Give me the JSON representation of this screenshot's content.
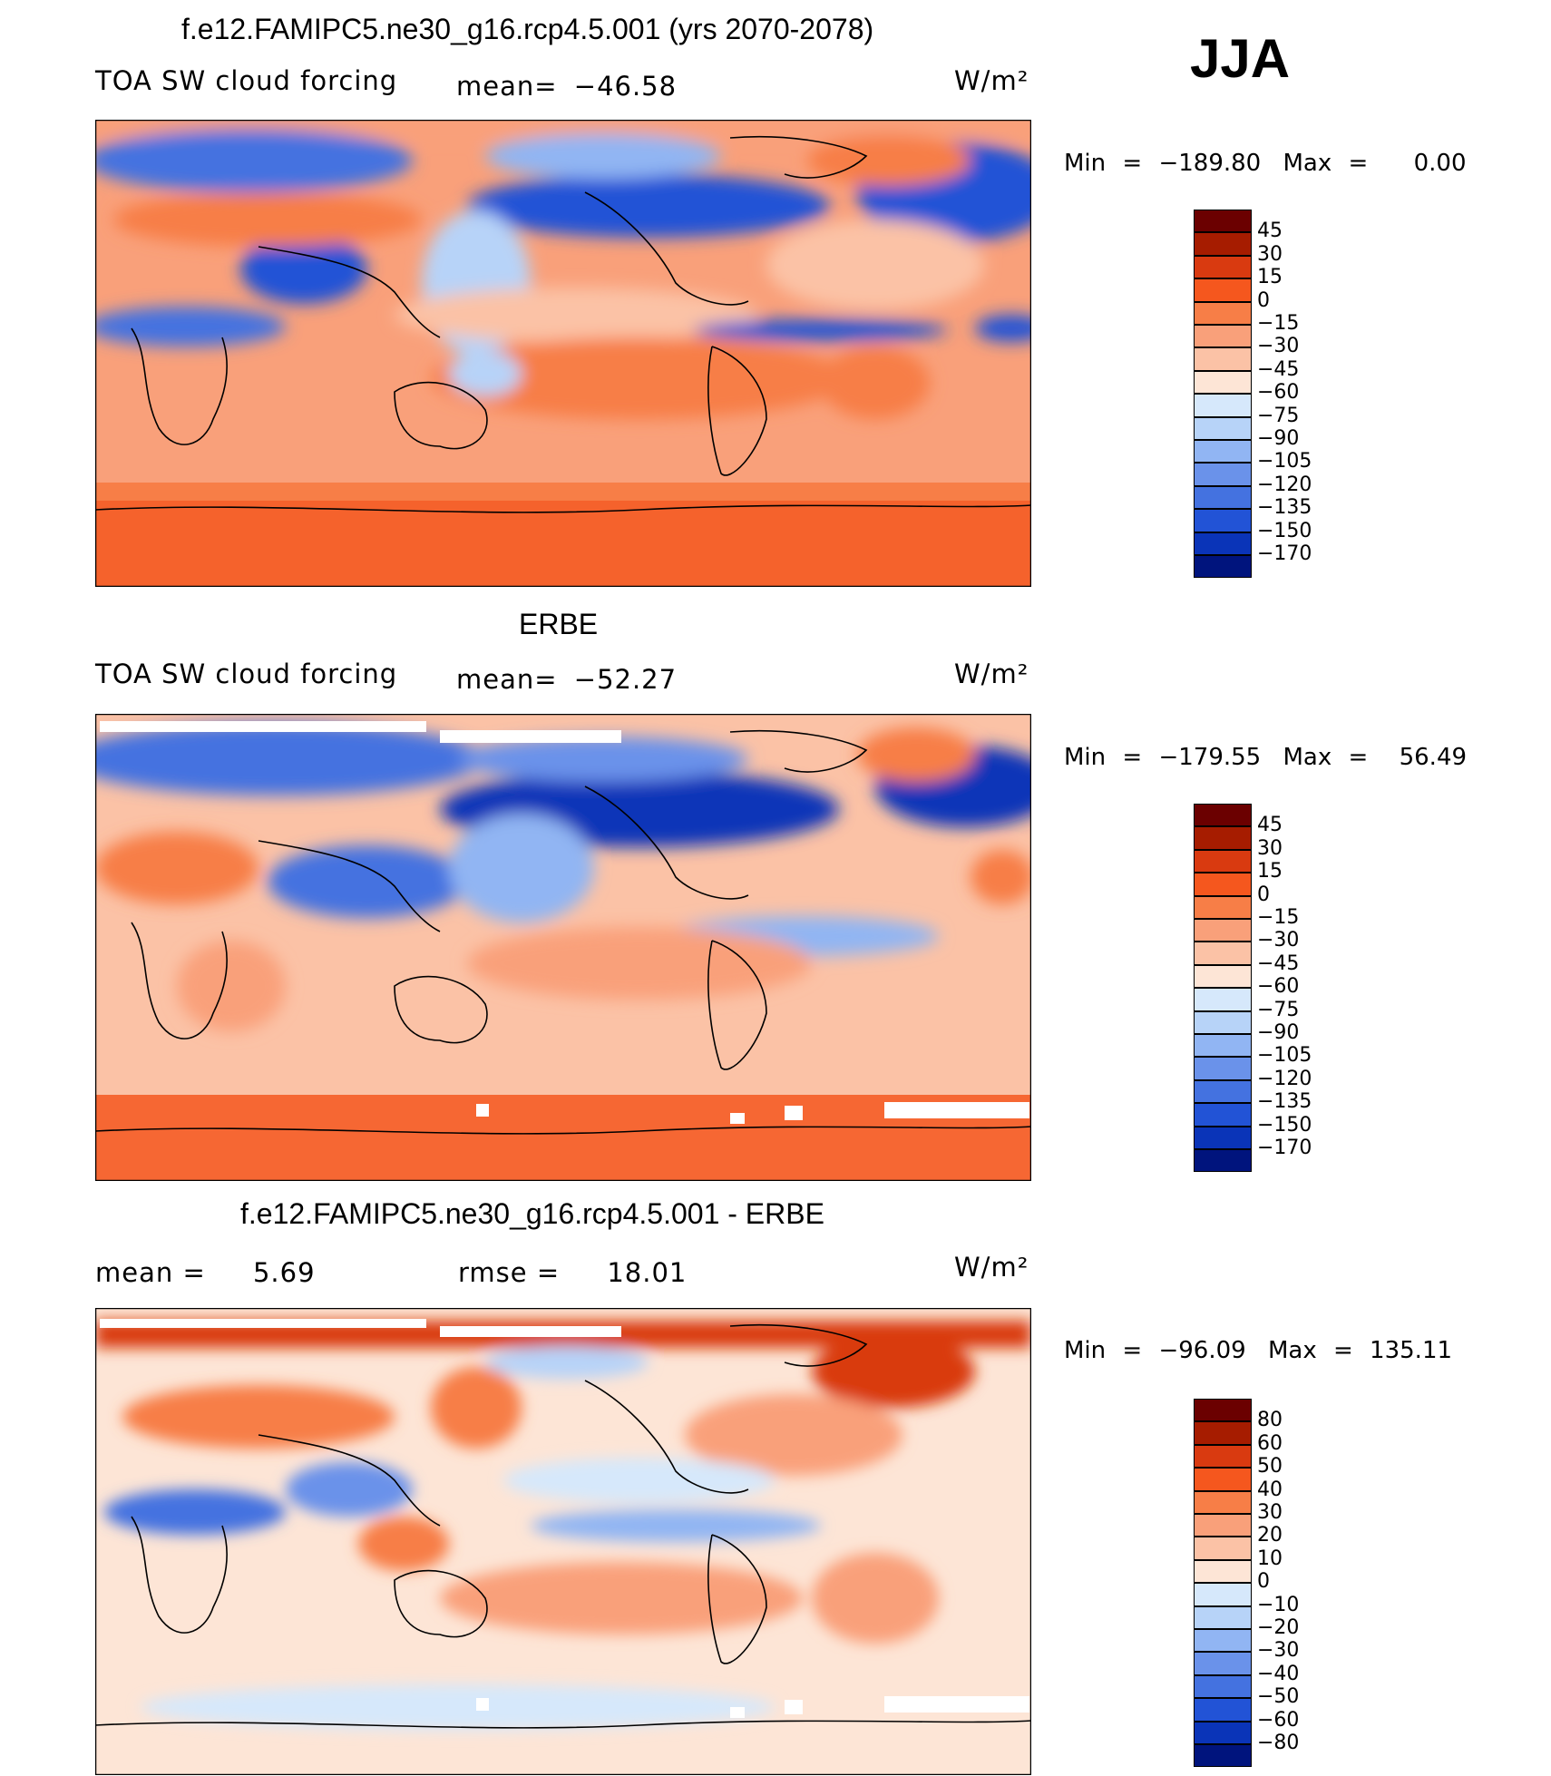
{
  "season": "JJA",
  "units": "W/m²",
  "panels": [
    {
      "title": "f.e12.FAMIPC5.ne30_g16.rcp4.5.001 (yrs 2070-2078)",
      "variable": "TOA SW cloud forcing",
      "mean_label": "mean=",
      "mean_value": "−46.58",
      "min_label": "Min",
      "min_value": "−189.80",
      "max_label": "Max",
      "max_value": "0.00",
      "colorbar_labels": [
        "45",
        "30",
        "15",
        "0",
        "−15",
        "−30",
        "−45",
        "−60",
        "−75",
        "−90",
        "−105",
        "−120",
        "−135",
        "−150",
        "−170"
      ]
    },
    {
      "title": "ERBE",
      "variable": "TOA SW cloud forcing",
      "mean_label": "mean=",
      "mean_value": "−52.27",
      "min_label": "Min",
      "min_value": "−179.55",
      "max_label": "Max",
      "max_value": "56.49",
      "colorbar_labels": [
        "45",
        "30",
        "15",
        "0",
        "−15",
        "−30",
        "−45",
        "−60",
        "−75",
        "−90",
        "−105",
        "−120",
        "−135",
        "−150",
        "−170"
      ]
    },
    {
      "title": "f.e12.FAMIPC5.ne30_g16.rcp4.5.001 - ERBE",
      "mean_label": "mean =",
      "mean_value": "5.69",
      "rmse_label": "rmse =",
      "rmse_value": "18.01",
      "min_label": "Min",
      "min_value": "−96.09",
      "max_label": "Max",
      "max_value": "135.11",
      "colorbar_labels": [
        "80",
        "60",
        "50",
        "40",
        "30",
        "20",
        "10",
        "0",
        "−10",
        "−20",
        "−30",
        "−40",
        "−50",
        "−60",
        "−80"
      ]
    }
  ],
  "colors": {
    "scale16": [
      "#6b0000",
      "#a61c00",
      "#d93a10",
      "#f5571e",
      "#f77e47",
      "#f9a07a",
      "#fbc2a6",
      "#fde5d6",
      "#d6e8fb",
      "#b7d3f8",
      "#91b5f3",
      "#6a92ea",
      "#4472e0",
      "#2253d6",
      "#0a34b8",
      "#00147d"
    ]
  }
}
